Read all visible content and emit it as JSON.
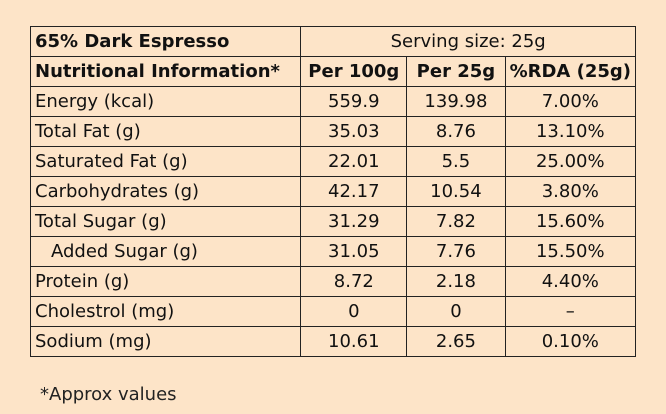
{
  "header": {
    "title": "65% Dark Espresso",
    "serving": "Serving size: 25g"
  },
  "table": {
    "columns": [
      "Nutritional Information*",
      "Per 100g",
      "Per 25g",
      "%RDA (25g)"
    ],
    "rows": [
      [
        "Energy (kcal)",
        "559.9",
        "139.98",
        "7.00%"
      ],
      [
        "Total Fat (g)",
        "35.03",
        "8.76",
        "13.10%"
      ],
      [
        "Saturated Fat (g)",
        "22.01",
        "5.5",
        "25.00%"
      ],
      [
        "Carbohydrates (g)",
        "42.17",
        "10.54",
        "3.80%"
      ],
      [
        "Total Sugar (g)",
        "31.29",
        "7.82",
        "15.60%"
      ],
      [
        "Added Sugar (g)",
        "31.05",
        "7.76",
        "15.50%"
      ],
      [
        "Protein (g)",
        "8.72",
        "2.18",
        "4.40%"
      ],
      [
        "Cholestrol (mg)",
        "0",
        "0",
        "–"
      ],
      [
        "Sodium (mg)",
        "10.61",
        "2.65",
        "0.10%"
      ]
    ]
  },
  "footnote": "*Approx values"
}
